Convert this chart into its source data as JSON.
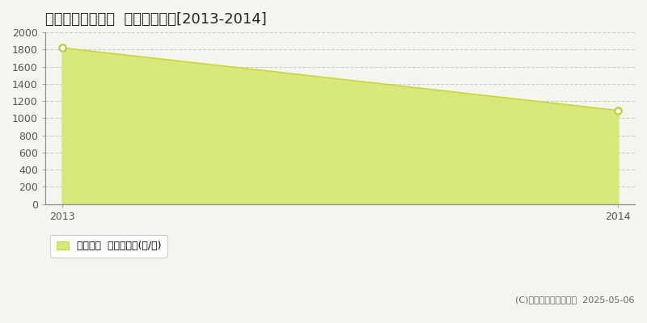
{
  "title": "西伯郡大山町豊成  林地価格推移[2013-2014]",
  "x": [
    2013,
    2014
  ],
  "y": [
    1820,
    1090
  ],
  "ylim": [
    0,
    2000
  ],
  "xlim": [
    2012.97,
    2014.03
  ],
  "yticks": [
    0,
    200,
    400,
    600,
    800,
    1000,
    1200,
    1400,
    1600,
    1800,
    2000
  ],
  "xticks": [
    2013,
    2014
  ],
  "line_color": "#c8d640",
  "fill_color": "#d8e87a",
  "fill_alpha": 1.0,
  "marker_color": "#ffffff",
  "marker_edge_color": "#b8cc30",
  "line_width": 1.2,
  "marker_size": 6,
  "grid_color": "#cccccc",
  "grid_style": "--",
  "bg_color": "#f5f5f0",
  "plot_bg_color": "#f5f5f0",
  "legend_label": "林地価格  平均坪単価(円/坪)",
  "copyright": "(C)土地価格ドットコム  2025-05-06",
  "title_fontsize": 13,
  "tick_fontsize": 9,
  "legend_fontsize": 9
}
